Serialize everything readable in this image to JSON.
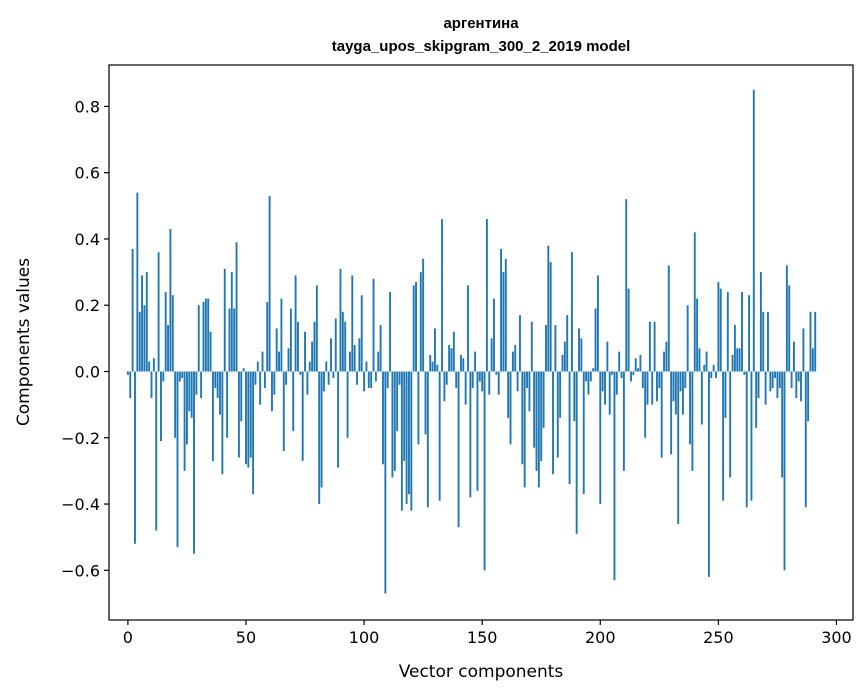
{
  "chart_data": {
    "type": "bar",
    "title": "аргентина",
    "subtitle": "tayga_upos_skipgram_300_2_2019 model",
    "xlabel": "Vector components",
    "ylabel": "Components values",
    "xlim": [
      -8,
      307
    ],
    "ylim": [
      -0.75,
      0.925
    ],
    "xticks": [
      0,
      50,
      100,
      150,
      200,
      250,
      300
    ],
    "xtick_labels": [
      "0",
      "50",
      "100",
      "150",
      "200",
      "250",
      "300"
    ],
    "yticks": [
      -0.6,
      -0.4,
      -0.2,
      0.0,
      0.2,
      0.4,
      0.6,
      0.8
    ],
    "ytick_labels": [
      "−0.6",
      "−0.4",
      "−0.2",
      "0.0",
      "0.2",
      "0.4",
      "0.6",
      "0.8"
    ],
    "bar_color": "#1f77b4",
    "bar_width": 0.8,
    "values": [
      -0.01,
      -0.08,
      0.37,
      -0.52,
      0.54,
      0.18,
      0.29,
      0.2,
      0.3,
      0.03,
      -0.08,
      0.04,
      -0.48,
      0.36,
      -0.21,
      -0.03,
      0.24,
      0.14,
      0.43,
      0.23,
      -0.2,
      -0.53,
      -0.03,
      -0.02,
      -0.3,
      -0.22,
      -0.12,
      -0.14,
      -0.55,
      -0.07,
      0.2,
      -0.08,
      0.21,
      0.22,
      0.22,
      0.12,
      -0.27,
      -0.05,
      -0.08,
      -0.13,
      -0.31,
      0.31,
      -0.2,
      0.19,
      0.3,
      0.19,
      0.39,
      -0.26,
      -0.15,
      0.01,
      -0.28,
      -0.29,
      -0.26,
      -0.37,
      -0.04,
      0.03,
      -0.1,
      0.06,
      -0.05,
      0.21,
      0.53,
      -0.12,
      -0.07,
      0.13,
      0.06,
      0.22,
      -0.24,
      -0.04,
      0.07,
      0.19,
      -0.18,
      0.29,
      0.15,
      -0.01,
      -0.27,
      0.12,
      -0.07,
      0.03,
      0.09,
      0.15,
      0.26,
      -0.4,
      -0.35,
      -0.06,
      0.03,
      -0.04,
      0.1,
      -0.02,
      0.16,
      -0.29,
      0.31,
      0.18,
      0.15,
      -0.2,
      0.06,
      0.29,
      0.08,
      -0.04,
      0.1,
      0.23,
      -0.06,
      0.03,
      -0.05,
      -0.05,
      0.28,
      -0.03,
      0.06,
      0.14,
      -0.28,
      -0.67,
      -0.05,
      0.24,
      -0.32,
      -0.3,
      -0.18,
      -0.04,
      -0.42,
      -0.27,
      -0.4,
      -0.37,
      -0.42,
      0.26,
      0.27,
      -0.22,
      0.3,
      0.34,
      -0.19,
      -0.41,
      0.05,
      0.03,
      0.13,
      0.02,
      -0.39,
      0.46,
      -0.09,
      -0.04,
      0.08,
      0.07,
      0.12,
      -0.05,
      -0.47,
      0.05,
      0.04,
      -0.1,
      0.26,
      -0.38,
      -0.05,
      0.06,
      -0.36,
      -0.03,
      -0.06,
      -0.6,
      0.46,
      -0.07,
      0.1,
      0.22,
      -0.01,
      -0.07,
      0.37,
      0.3,
      0.34,
      -0.14,
      -0.22,
      0.06,
      0.08,
      -0.06,
      0.17,
      -0.28,
      -0.35,
      -0.05,
      -0.12,
      0.15,
      -0.23,
      -0.3,
      -0.35,
      -0.27,
      -0.17,
      0.14,
      0.38,
      0.33,
      -0.31,
      0.14,
      -0.26,
      -0.14,
      0.05,
      0.09,
      0.17,
      -0.34,
      0.36,
      -0.15,
      -0.49,
      0.13,
      0.1,
      -0.37,
      -0.03,
      -0.07,
      -0.03,
      0.01,
      0.19,
      0.29,
      -0.4,
      -0.06,
      -0.1,
      0.09,
      -0.13,
      -0.01,
      -0.63,
      -0.07,
      0.06,
      -0.02,
      -0.3,
      0.52,
      0.25,
      -0.03,
      -0.01,
      0.04,
      0.01,
      0.05,
      -0.05,
      -0.2,
      -0.1,
      0.15,
      -0.1,
      0.15,
      -0.09,
      -0.05,
      -0.26,
      0.06,
      0.09,
      0.32,
      -0.25,
      -0.09,
      -0.13,
      -0.46,
      -0.06,
      -0.13,
      -0.05,
      0.2,
      -0.22,
      -0.3,
      0.42,
      0.22,
      0.07,
      -0.16,
      0.02,
      0.06,
      -0.62,
      -0.02,
      0.02,
      -0.02,
      0.27,
      0.25,
      -0.39,
      -0.14,
      0.24,
      -0.32,
      0.05,
      0.14,
      0.07,
      0.07,
      0.24,
      -0.01,
      -0.41,
      0.23,
      -0.39,
      0.85,
      -0.17,
      -0.08,
      0.3,
      0.18,
      -0.1,
      0.18,
      -0.06,
      -0.05,
      -0.02,
      -0.08,
      -0.05,
      -0.32,
      -0.6,
      0.32,
      0.26,
      -0.05,
      0.09,
      -0.08,
      -0.03,
      -0.09,
      0.13,
      -0.41,
      -0.15,
      0.18,
      0.07,
      0.18
    ]
  }
}
